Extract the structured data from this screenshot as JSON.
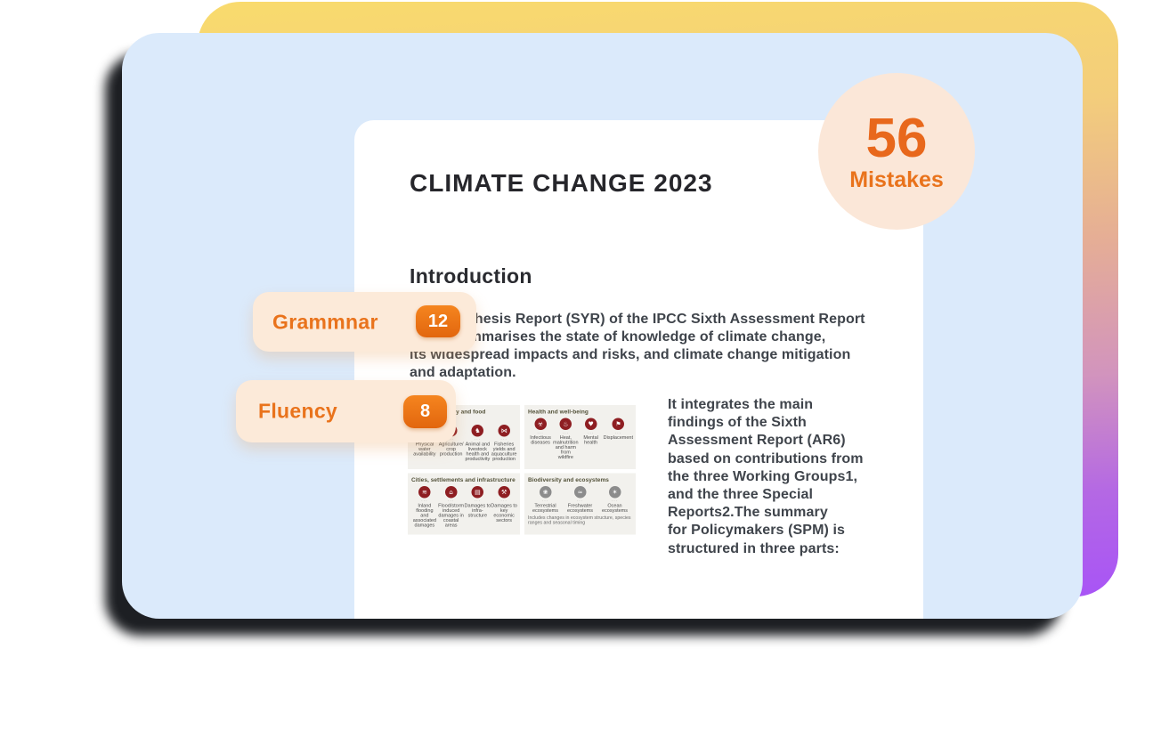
{
  "colors": {
    "accent_orange": "#e9731c",
    "peach": "#fcead9",
    "blue_card": "#dbeafb",
    "gradient_yellow": "#f9db6d",
    "gradient_purple": "#a854f6",
    "chip_orange": "#ec7414",
    "figure_icon_red": "#8e1e22",
    "figure_icon_gray": "#8c8c8c"
  },
  "badge_circle": {
    "count": "56",
    "label": "Mistakes"
  },
  "annotations": [
    {
      "id": "grammar",
      "label": "Grammnar",
      "count": "12"
    },
    {
      "id": "fluency",
      "label": "Fluency",
      "count": "8"
    }
  ],
  "document": {
    "title": "CLIMATE CHANGE 2023",
    "section_heading": "Introduction",
    "intro_lines": [
      "This Synthesis Report (SYR) of the IPCC Sixth Assessment Report",
      "(AR6) summarises the state of knowledge of climate change,",
      "its widespread impacts and risks, and climate change mitigation",
      "and adaptation."
    ],
    "side_lines": [
      "It integrates the main",
      "findings of the Sixth",
      "Assessment Report (AR6)",
      "based on contributions from",
      "the three Working Groups1,",
      "and the three Special",
      "Reports2.The summary",
      "for Policymakers (SPM) is",
      "structured in three parts:"
    ]
  },
  "figure": {
    "dots": "···",
    "panels": [
      {
        "title": "Water availability and food production",
        "theme": "red",
        "row": 1,
        "items": [
          {
            "icon": "water-availability-icon",
            "glyph": "☂",
            "label": "Physical water availability"
          },
          {
            "icon": "crop-production-icon",
            "glyph": "✿",
            "label": "Agriculture/ crop production"
          },
          {
            "icon": "livestock-health-icon",
            "glyph": "♞",
            "label": "Animal and livestock health and productivity"
          },
          {
            "icon": "fisheries-icon",
            "glyph": "⋈",
            "label": "Fisheries yields and aquaculture production"
          }
        ]
      },
      {
        "title": "Health and well-being",
        "theme": "red",
        "row": 1,
        "items": [
          {
            "icon": "infectious-diseases-icon",
            "glyph": "☣",
            "label": "Infectious diseases"
          },
          {
            "icon": "heat-malnutrition-icon",
            "glyph": "♨",
            "label": "Heat, malnutrition and harm from wildfire"
          },
          {
            "icon": "mental-health-icon",
            "glyph": "♥",
            "label": "Mental health"
          },
          {
            "icon": "displacement-icon",
            "glyph": "⚑",
            "label": "Displacement"
          }
        ]
      },
      {
        "title": "Cities, settlements and infrastructure",
        "theme": "red",
        "row": 2,
        "items": [
          {
            "icon": "inland-flooding-icon",
            "glyph": "≋",
            "label": "Inland flooding and associated damages"
          },
          {
            "icon": "coastal-flood-icon",
            "glyph": "⌂",
            "label": "Flood/storm induced damages in coastal areas"
          },
          {
            "icon": "infrastructure-damage-icon",
            "glyph": "▤",
            "label": "Damages to infra-structure"
          },
          {
            "icon": "economic-sectors-icon",
            "glyph": "⚒",
            "label": "Damages to key economic sectors"
          }
        ]
      },
      {
        "title": "Biodiversity and ecosystems",
        "theme": "gray",
        "row": 2,
        "items": [
          {
            "icon": "terrestrial-ecosystems-icon",
            "glyph": "❀",
            "label": "Terrestrial ecosystems"
          },
          {
            "icon": "freshwater-ecosystems-icon",
            "glyph": "≈",
            "label": "Freshwater ecosystems"
          },
          {
            "icon": "ocean-ecosystems-icon",
            "glyph": "✶",
            "label": "Ocean ecosystems"
          }
        ],
        "note": "Includes changes in ecosystem structure, species ranges and seasonal timing"
      }
    ]
  }
}
